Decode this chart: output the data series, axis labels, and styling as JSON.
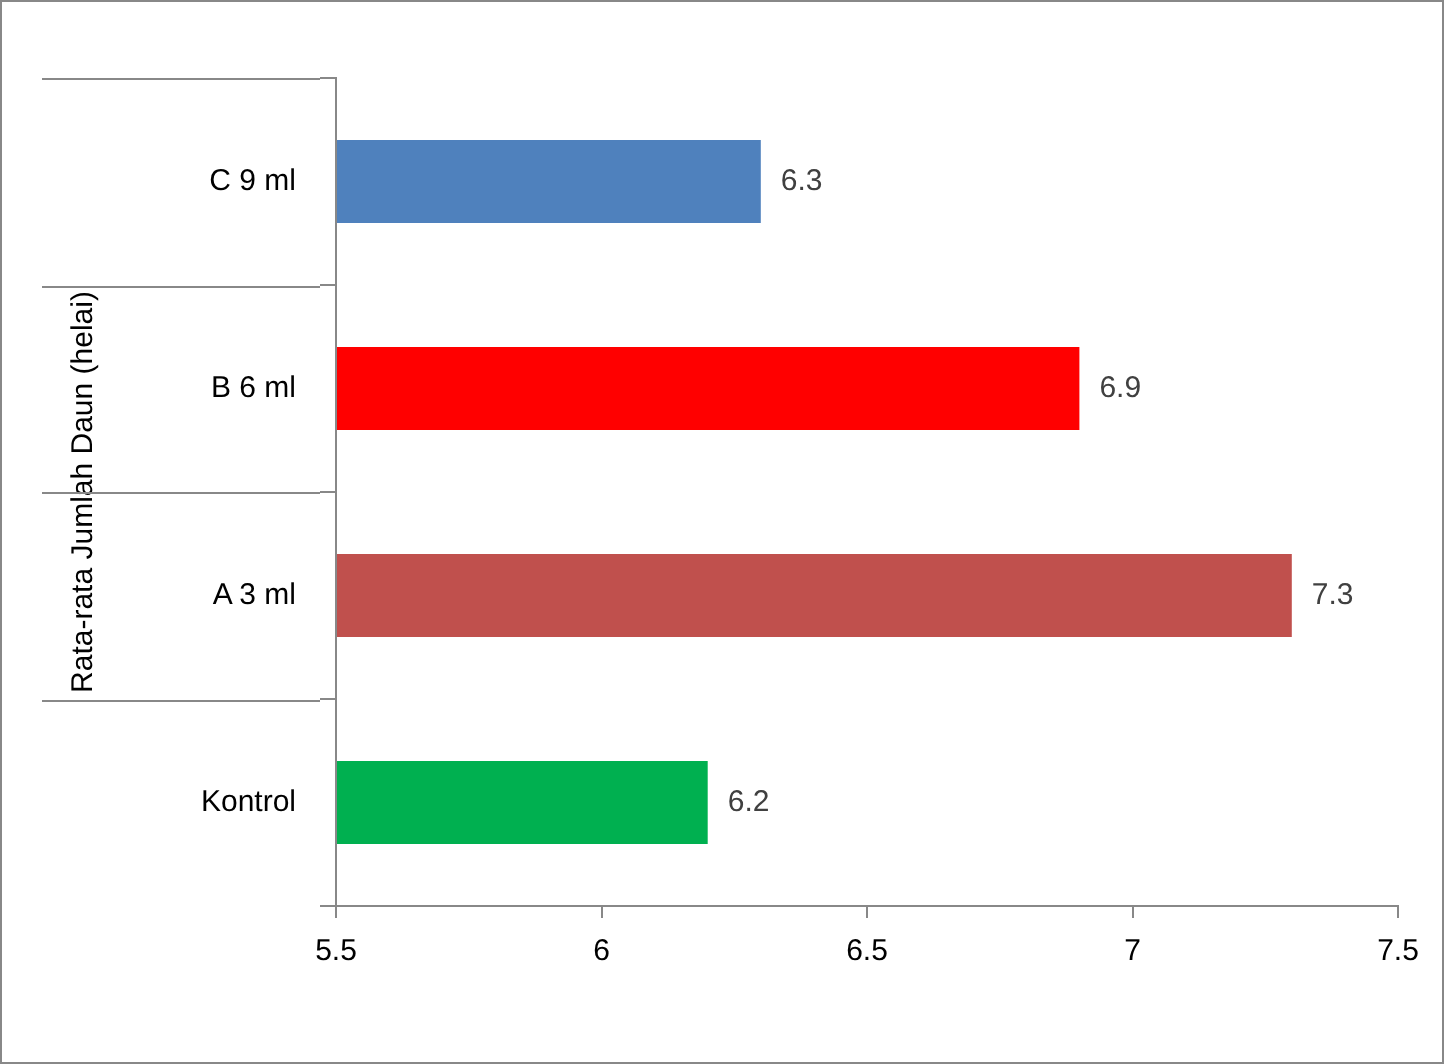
{
  "chart_data": {
    "type": "bar",
    "orientation": "horizontal",
    "ylabel": "Rata-rata Jumlah Daun (helai)",
    "categories": [
      "C 9 ml",
      "B 6 ml",
      "A 3 ml",
      "Kontrol"
    ],
    "values": [
      6.3,
      6.9,
      7.3,
      6.2
    ],
    "colors": [
      "#4f81bd",
      "#ff0000",
      "#c0504d",
      "#00b050"
    ],
    "xlim": [
      5.5,
      7.5
    ],
    "xticks": [
      5.5,
      6,
      6.5,
      7,
      7.5
    ],
    "grid": false,
    "legend": false,
    "data_labels": true
  }
}
